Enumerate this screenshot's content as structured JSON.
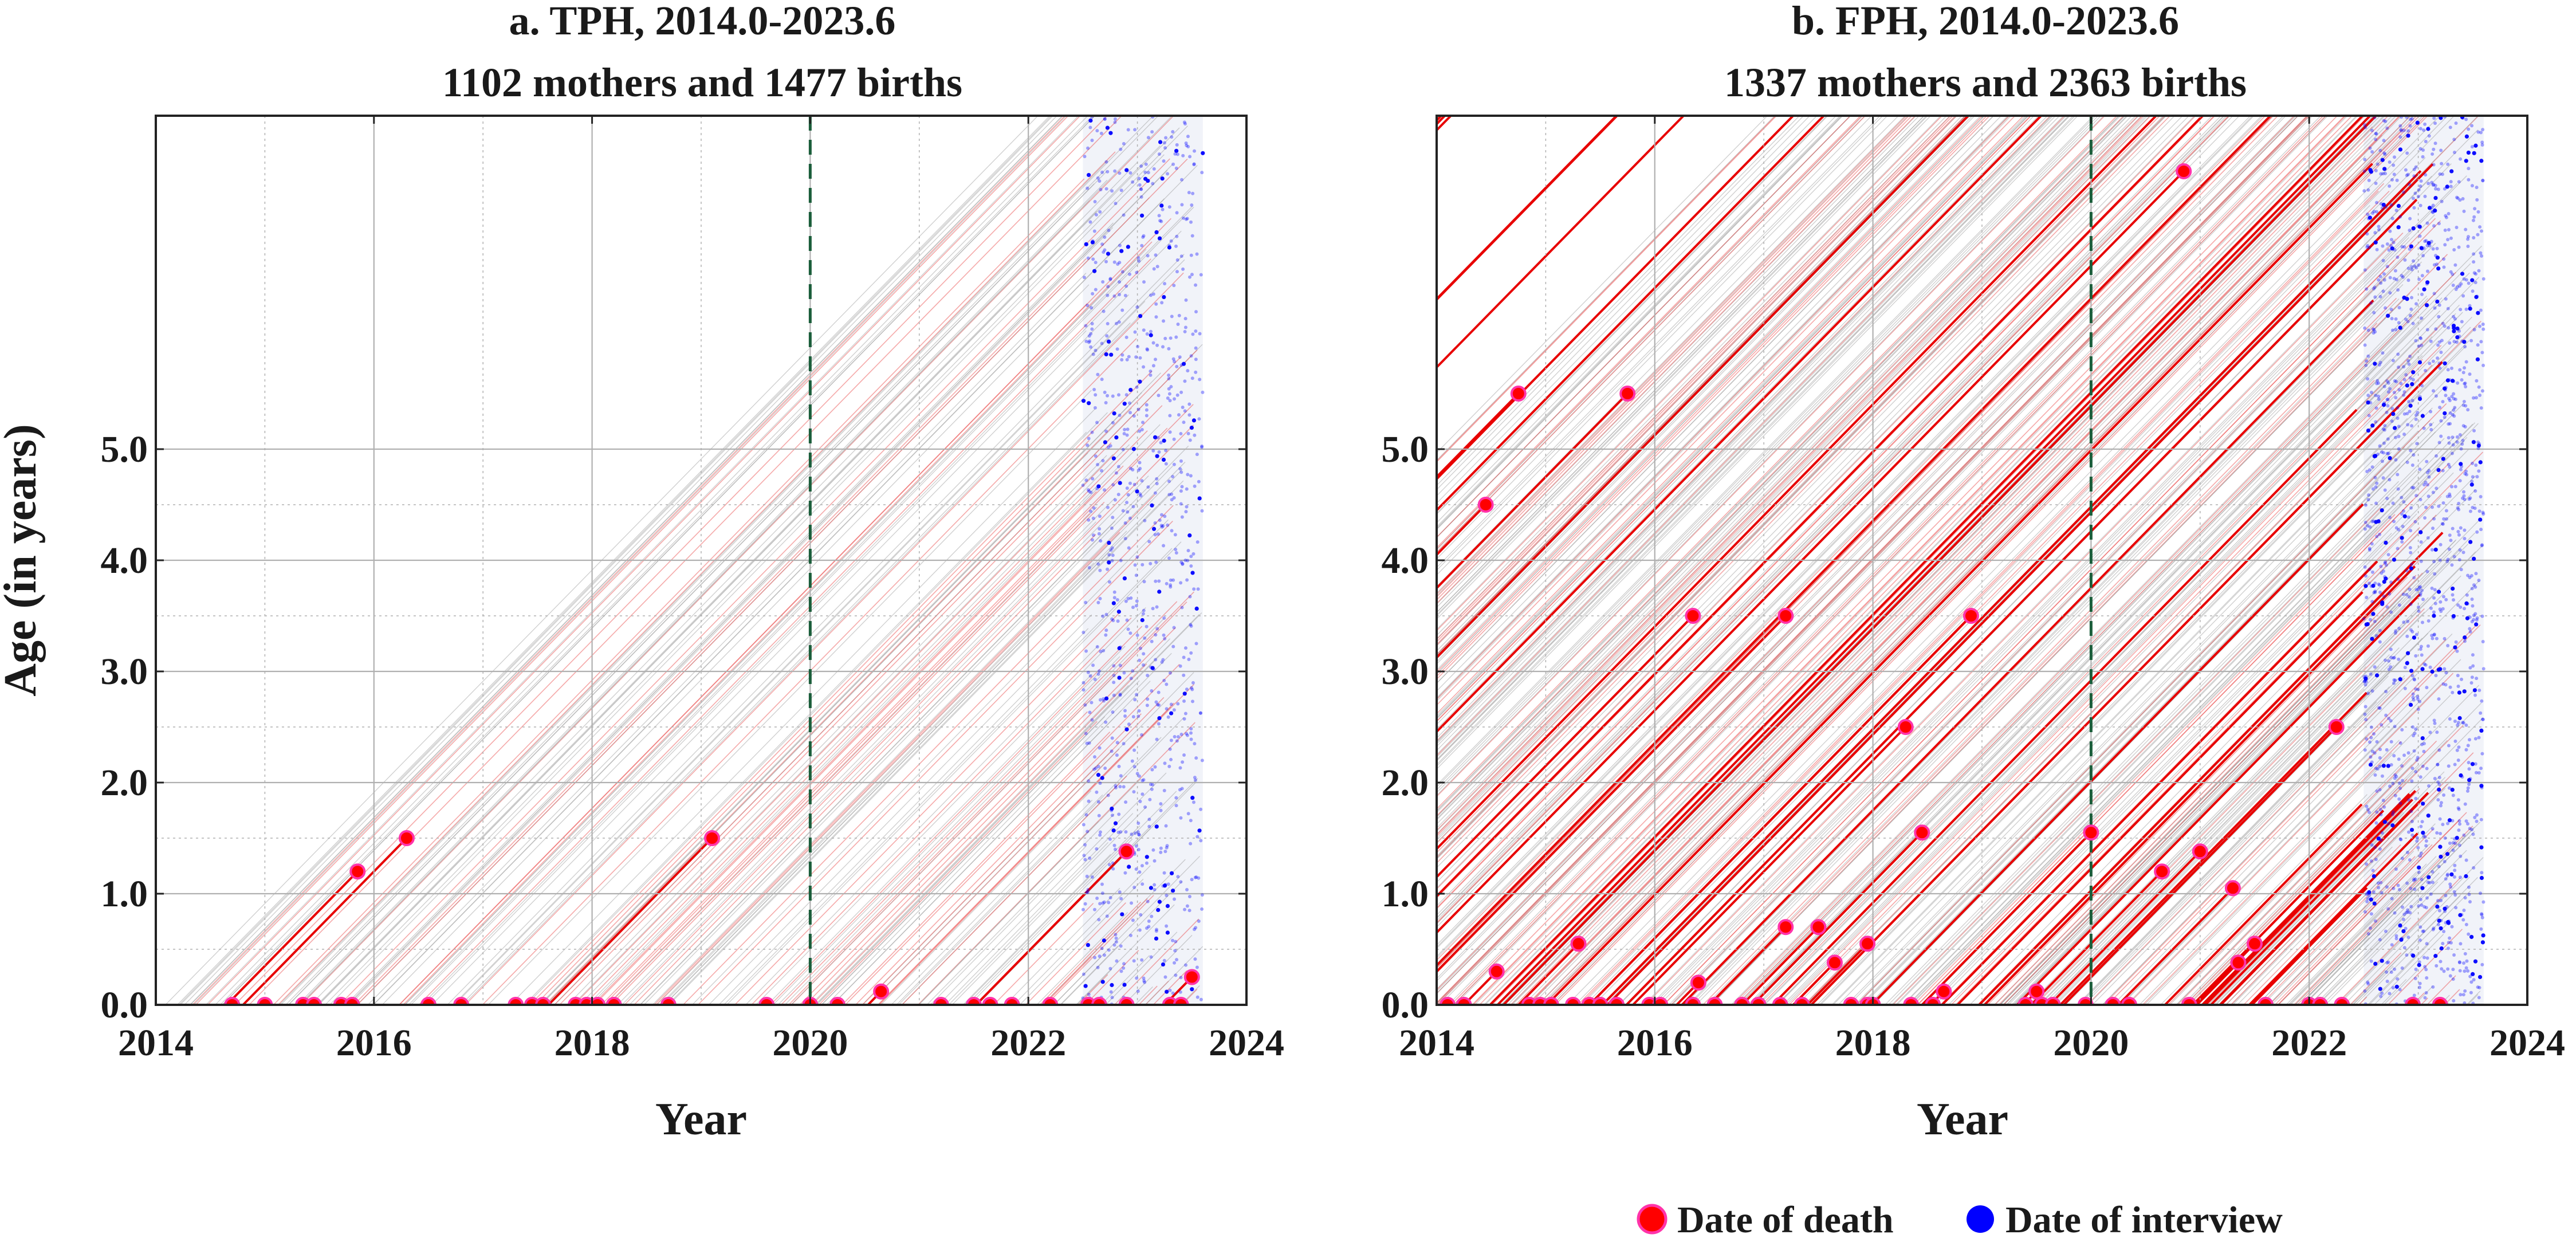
{
  "chart_data": [
    {
      "type": "line",
      "panel": "a",
      "title_line1": "a. TPH, 2014.0-2023.6",
      "title_line2": "1102 mothers and 1477 births",
      "xlabel": "Year",
      "ylabel": "Age (in years)",
      "xlim": [
        2014,
        2024
      ],
      "ylim": [
        0,
        8
      ],
      "xticks": [
        "2014",
        "2016",
        "2018",
        "2020",
        "2022",
        "2024"
      ],
      "yticks": [
        "0.0",
        "1.0",
        "2.0",
        "3.0",
        "4.0",
        "5.0"
      ],
      "grid": true,
      "reference_line_x": 2020,
      "interview_window": [
        2022.5,
        2023.6
      ],
      "deaths": [
        [
          2014.7,
          0.0
        ],
        [
          2015.0,
          0.0
        ],
        [
          2015.35,
          0.0
        ],
        [
          2015.45,
          0.0
        ],
        [
          2015.7,
          0.0
        ],
        [
          2015.8,
          0.0
        ],
        [
          2015.85,
          1.2
        ],
        [
          2016.3,
          1.5
        ],
        [
          2016.5,
          0.0
        ],
        [
          2016.8,
          0.0
        ],
        [
          2017.3,
          0.0
        ],
        [
          2017.45,
          0.0
        ],
        [
          2017.55,
          0.0
        ],
        [
          2017.85,
          0.0
        ],
        [
          2017.95,
          0.0
        ],
        [
          2018.05,
          0.0
        ],
        [
          2018.2,
          0.0
        ],
        [
          2018.7,
          0.0
        ],
        [
          2019.1,
          1.5
        ],
        [
          2019.6,
          0.0
        ],
        [
          2020.0,
          0.0
        ],
        [
          2020.25,
          0.0
        ],
        [
          2020.65,
          0.12
        ],
        [
          2021.2,
          0.0
        ],
        [
          2021.5,
          0.0
        ],
        [
          2021.65,
          0.0
        ],
        [
          2021.85,
          0.0
        ],
        [
          2022.2,
          0.0
        ],
        [
          2022.55,
          0.0
        ],
        [
          2022.65,
          0.0
        ],
        [
          2022.9,
          0.0
        ],
        [
          2022.9,
          1.38
        ],
        [
          2023.3,
          0.0
        ],
        [
          2023.4,
          0.0
        ],
        [
          2023.5,
          0.25
        ]
      ]
    },
    {
      "type": "line",
      "panel": "b",
      "title_line1": "b. FPH, 2014.0-2023.6",
      "title_line2": "1337 mothers and 2363 births",
      "xlabel": "Year",
      "xlim": [
        2014,
        2024
      ],
      "ylim": [
        0,
        8
      ],
      "xticks": [
        "2014",
        "2016",
        "2018",
        "2020",
        "2022",
        "2024"
      ],
      "yticks": [
        "0.0",
        "1.0",
        "2.0",
        "3.0",
        "4.0",
        "5.0"
      ],
      "grid": true,
      "reference_line_x": 2020,
      "interview_window": [
        2022.5,
        2023.6
      ],
      "deaths": [
        [
          2014.1,
          0.0
        ],
        [
          2014.25,
          0.0
        ],
        [
          2014.45,
          4.5
        ],
        [
          2014.55,
          0.3
        ],
        [
          2014.75,
          5.5
        ],
        [
          2014.85,
          0.0
        ],
        [
          2014.95,
          0.0
        ],
        [
          2015.05,
          0.0
        ],
        [
          2015.25,
          0.0
        ],
        [
          2015.3,
          0.55
        ],
        [
          2015.4,
          0.0
        ],
        [
          2015.5,
          0.0
        ],
        [
          2015.65,
          0.0
        ],
        [
          2015.75,
          5.5
        ],
        [
          2015.95,
          0.0
        ],
        [
          2016.05,
          0.0
        ],
        [
          2016.35,
          0.0
        ],
        [
          2016.35,
          3.5
        ],
        [
          2016.4,
          0.2
        ],
        [
          2016.55,
          0.0
        ],
        [
          2016.8,
          0.0
        ],
        [
          2016.95,
          0.0
        ],
        [
          2017.15,
          0.0
        ],
        [
          2017.2,
          3.5
        ],
        [
          2017.2,
          0.7
        ],
        [
          2017.35,
          0.0
        ],
        [
          2017.5,
          0.7
        ],
        [
          2017.65,
          0.38
        ],
        [
          2017.8,
          0.0
        ],
        [
          2017.95,
          0.55
        ],
        [
          2017.95,
          0.0
        ],
        [
          2018.0,
          0.0
        ],
        [
          2018.3,
          2.5
        ],
        [
          2018.35,
          0.0
        ],
        [
          2018.45,
          1.55
        ],
        [
          2018.55,
          0.0
        ],
        [
          2018.65,
          0.12
        ],
        [
          2018.9,
          3.5
        ],
        [
          2019.4,
          0.0
        ],
        [
          2019.5,
          0.12
        ],
        [
          2019.55,
          0.0
        ],
        [
          2019.65,
          0.0
        ],
        [
          2019.95,
          0.0
        ],
        [
          2020.0,
          1.55
        ],
        [
          2020.2,
          0.0
        ],
        [
          2020.35,
          0.0
        ],
        [
          2020.65,
          1.2
        ],
        [
          2020.85,
          7.5
        ],
        [
          2020.9,
          0.0
        ],
        [
          2021.0,
          1.38
        ],
        [
          2021.3,
          1.05
        ],
        [
          2021.35,
          0.38
        ],
        [
          2021.5,
          0.55
        ],
        [
          2021.6,
          0.0
        ],
        [
          2022.0,
          0.0
        ],
        [
          2022.1,
          0.0
        ],
        [
          2022.25,
          2.5
        ],
        [
          2022.3,
          0.0
        ],
        [
          2022.95,
          0.0
        ],
        [
          2023.2,
          0.0
        ]
      ]
    }
  ],
  "legend": {
    "position": "bottom-right",
    "items": [
      {
        "label": "Date of death",
        "color": "#ff0000"
      },
      {
        "label": "Date of interview",
        "color": "#0000ff"
      }
    ]
  },
  "colors": {
    "death": "#ff0000",
    "death_outline": "#ff33aa",
    "interview": "#0000ff",
    "reference": "#1b5e3b",
    "lexis_grey": "#9e9e9e",
    "lexis_red": "#e84040"
  }
}
